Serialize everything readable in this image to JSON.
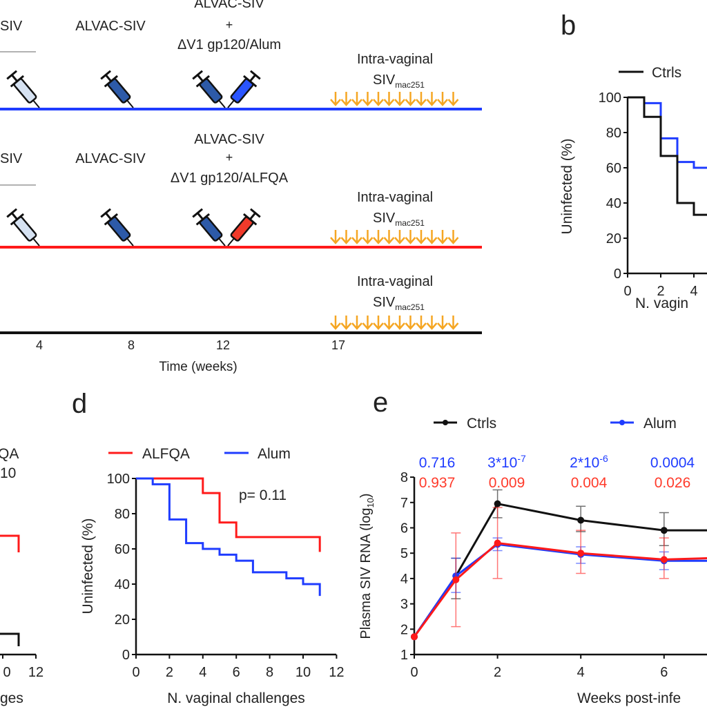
{
  "schema": {
    "groups": [
      {
        "prime_label": "SIV",
        "boost1_label": "ALVAC-SIV",
        "boost2_lines": [
          "ALVAC-SIV",
          "+",
          "ΔV1 gp120/Alum"
        ],
        "challenge_lines": [
          "Intra-vaginal",
          "SIV",
          "mac251"
        ],
        "line_color": "#1f3cff",
        "adjuvant_syringe_color": "#2a55ff"
      },
      {
        "prime_label": "SIV",
        "boost1_label": "ALVAC-SIV",
        "boost2_lines": [
          "ALVAC-SIV",
          "+",
          "ΔV1 gp120/ALFQA"
        ],
        "challenge_lines": [
          "Intra-vaginal",
          "SIV",
          "mac251"
        ],
        "line_color": "#ff1a1a",
        "adjuvant_syringe_color": "#f03a2a"
      },
      {
        "challenge_lines": [
          "Intra-vaginal",
          "SIV",
          "mac251"
        ],
        "line_color": "#111111"
      }
    ],
    "time_ticks": [
      "4",
      "8",
      "12",
      "17"
    ],
    "time_label": "Time (weeks)",
    "challenge_arrow_color": "#f5a623",
    "challenge_arrow_count": 12
  },
  "panel_c_partial": {
    "legend_fragment": "QA",
    "p_fragment": "10",
    "tick_fragments": [
      "0",
      "12"
    ],
    "xlabel_fragment": "ges"
  },
  "chart_data": [
    {
      "panel": "b",
      "type": "line",
      "step": true,
      "legend": [
        {
          "name": "Ctrls",
          "color": "#111111"
        }
      ],
      "ylabel": "Uninfected (%)",
      "xlabel": "N. vagin",
      "xticks": [
        "0",
        "2",
        "4"
      ],
      "yticks": [
        "0",
        "20",
        "40",
        "60",
        "80",
        "100"
      ],
      "ylim": [
        0,
        100
      ],
      "series": [
        {
          "name": "Ctrls",
          "color": "#111111",
          "x": [
            0,
            1,
            2,
            3,
            4,
            6
          ],
          "y": [
            100,
            88.9,
            66.7,
            40,
            33.3,
            33.3
          ]
        },
        {
          "color": "#1f3cff",
          "x": [
            0,
            1,
            2,
            3,
            4,
            6
          ],
          "y": [
            100,
            96.7,
            76.7,
            63.3,
            60,
            60
          ]
        }
      ]
    },
    {
      "panel": "d",
      "type": "line",
      "step": true,
      "legend": [
        {
          "name": "ALFQA",
          "color": "#ff1a1a"
        },
        {
          "name": "Alum",
          "color": "#1f3cff"
        }
      ],
      "annotation": "p= 0.11",
      "ylabel": "Uninfected (%)",
      "xlabel": "N. vaginal challenges",
      "xticks": [
        "0",
        "2",
        "4",
        "6",
        "8",
        "10",
        "12"
      ],
      "yticks": [
        "0",
        "20",
        "40",
        "60",
        "80",
        "100"
      ],
      "xlim": [
        0,
        12
      ],
      "ylim": [
        0,
        100
      ],
      "series": [
        {
          "name": "ALFQA",
          "color": "#ff1a1a",
          "x": [
            0,
            4,
            5,
            6,
            11
          ],
          "y": [
            100,
            91.7,
            75,
            66.7,
            58.3
          ]
        },
        {
          "name": "Alum",
          "color": "#1f3cff",
          "x": [
            0,
            1,
            2,
            3,
            4,
            5,
            6,
            7,
            9,
            10,
            11
          ],
          "y": [
            100,
            96.7,
            76.7,
            63.3,
            60,
            56.7,
            53.3,
            46.7,
            43.3,
            40,
            33.3
          ]
        }
      ]
    },
    {
      "panel": "e",
      "type": "line",
      "legend": [
        {
          "name": "Ctrls",
          "color": "#111111"
        },
        {
          "name": "Alum",
          "color": "#1f3cff"
        }
      ],
      "ylabel": "Plasma SIV RNA (log",
      "ylabel_sub": "10",
      "ylabel_end": ")",
      "xlabel": "Weeks post-infe",
      "xticks": [
        "0",
        "2",
        "4",
        "6"
      ],
      "yticks": [
        "1",
        "2",
        "3",
        "4",
        "5",
        "6",
        "7",
        "8"
      ],
      "ylim": [
        1,
        8
      ],
      "pvalues_alum": [
        {
          "x": 1,
          "text": "0.716"
        },
        {
          "x": 2,
          "base": "3*10",
          "exp": "-7"
        },
        {
          "x": 4,
          "base": "2*10",
          "exp": "-6"
        },
        {
          "x": 6,
          "text": "0.0004"
        }
      ],
      "pvalues_alfqa": [
        {
          "x": 1,
          "text": "0.937"
        },
        {
          "x": 2,
          "text": "0.009"
        },
        {
          "x": 4,
          "text": "0.004"
        },
        {
          "x": 6,
          "text": "0.026"
        }
      ],
      "series": [
        {
          "name": "Ctrls",
          "color": "#111111",
          "x": [
            0,
            1,
            2,
            4,
            6,
            8
          ],
          "y": [
            1.7,
            4.1,
            6.95,
            6.3,
            5.9,
            5.9
          ],
          "err_low": [
            null,
            3.2,
            6.4,
            5.85,
            5.3,
            null
          ],
          "err_high": [
            null,
            4.8,
            7.5,
            6.85,
            6.6,
            null
          ]
        },
        {
          "name": "Alum",
          "color": "#1f3cff",
          "x": [
            0,
            1,
            2,
            4,
            6,
            8
          ],
          "y": [
            1.7,
            4.1,
            5.35,
            4.95,
            4.7,
            4.7
          ],
          "err_low": [
            null,
            3.45,
            5.1,
            4.6,
            4.35,
            null
          ],
          "err_high": [
            null,
            4.8,
            5.6,
            5.25,
            5.05,
            null
          ]
        },
        {
          "color": "#ff1a1a",
          "x": [
            0,
            1,
            2,
            4,
            6,
            8
          ],
          "y": [
            1.7,
            3.95,
            5.4,
            5.0,
            4.75,
            4.85
          ],
          "err_low": [
            null,
            2.1,
            4.0,
            4.2,
            4.0,
            null
          ],
          "err_high": [
            null,
            5.8,
            6.8,
            5.9,
            5.6,
            null
          ]
        }
      ]
    }
  ],
  "panel_labels": {
    "b": "b",
    "d": "d",
    "e": "e"
  }
}
